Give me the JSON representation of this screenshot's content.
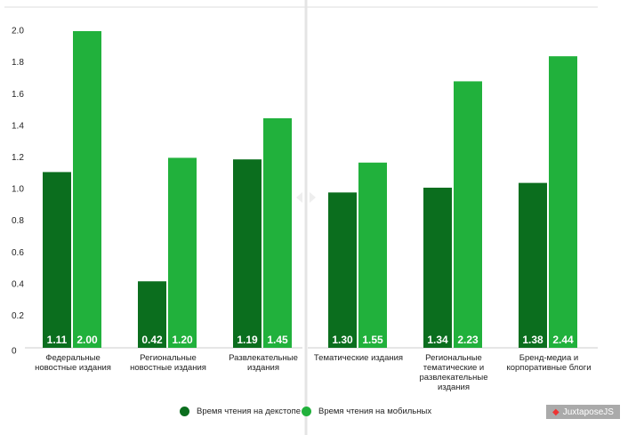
{
  "chart_data": [
    {
      "type": "bar",
      "categories": [
        "Федеральные новостные издания",
        "Региональные новостные издания",
        "Развлекательные издания"
      ],
      "series": [
        {
          "name": "Время чтения на декстопе",
          "color": "#0b6e1e",
          "values": [
            1.11,
            0.42,
            1.19
          ],
          "value_labels": [
            "1.11",
            "0.42",
            "1.19"
          ]
        },
        {
          "name": "Время чтения на мобильных",
          "color": "#21b13c",
          "values": [
            2,
            1.2,
            1.45
          ],
          "value_labels": [
            "2.00",
            "1.20",
            "1.45"
          ]
        }
      ],
      "ylim": [
        0,
        2
      ],
      "yticks": [
        0,
        0.2,
        0.4,
        0.6,
        0.8,
        {
          "value": 1,
          "label": "1.0"
        },
        1.2,
        1.4,
        1.6,
        1.8,
        {
          "value": 2,
          "label": "2.0"
        }
      ]
    },
    {
      "type": "bar",
      "categories": [
        "Тематические издания",
        "Региональные тематические и развлекательные издания",
        "Бренд-медиа и корпоративные блоги"
      ],
      "series": [
        {
          "color": "#0b6e1e",
          "values": [
            1.3,
            1.34,
            1.38
          ],
          "value_labels": [
            "1.30",
            "1.34",
            "1.38"
          ]
        },
        {
          "color": "#21b13c",
          "values": [
            1.55,
            2.23,
            2.44
          ],
          "value_labels": [
            "1.55",
            "2.23",
            "2.44"
          ]
        }
      ],
      "ylim": [
        0,
        2.65
      ]
    }
  ],
  "juxtapose": "JuxtaposeJS"
}
